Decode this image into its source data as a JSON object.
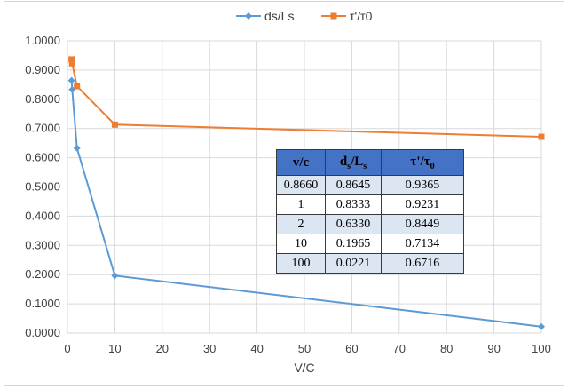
{
  "chart_data": {
    "type": "line",
    "xlabel": "V/C",
    "ylabel": "",
    "xlim": [
      0,
      100
    ],
    "ylim": [
      0,
      1
    ],
    "x_ticks": [
      "0",
      "10",
      "20",
      "30",
      "40",
      "50",
      "60",
      "70",
      "80",
      "90",
      "100"
    ],
    "y_ticks": [
      "0.0000",
      "0.1000",
      "0.2000",
      "0.3000",
      "0.4000",
      "0.5000",
      "0.6000",
      "0.7000",
      "0.8000",
      "0.9000",
      "1.0000"
    ],
    "grid": true,
    "legend_position": "top",
    "series": [
      {
        "name": "ds/Ls",
        "color": "#5b9bd5",
        "marker": "diamond",
        "x": [
          0.866,
          1,
          2,
          10,
          100
        ],
        "y": [
          0.8645,
          0.8333,
          0.633,
          0.1965,
          0.0221
        ]
      },
      {
        "name": "τ'/τ0",
        "color": "#ed7d31",
        "marker": "square",
        "x": [
          0.866,
          1,
          2,
          10,
          100
        ],
        "y": [
          0.9365,
          0.9231,
          0.8449,
          0.7134,
          0.6716
        ]
      }
    ],
    "table": {
      "headers": [
        "v/c",
        "ds/Ls",
        "τ'/τ0"
      ],
      "rows": [
        [
          "0.8660",
          "0.8645",
          "0.9365"
        ],
        [
          "1",
          "0.8333",
          "0.9231"
        ],
        [
          "2",
          "0.6330",
          "0.8449"
        ],
        [
          "10",
          "0.1965",
          "0.7134"
        ],
        [
          "100",
          "0.0221",
          "0.6716"
        ]
      ]
    }
  }
}
